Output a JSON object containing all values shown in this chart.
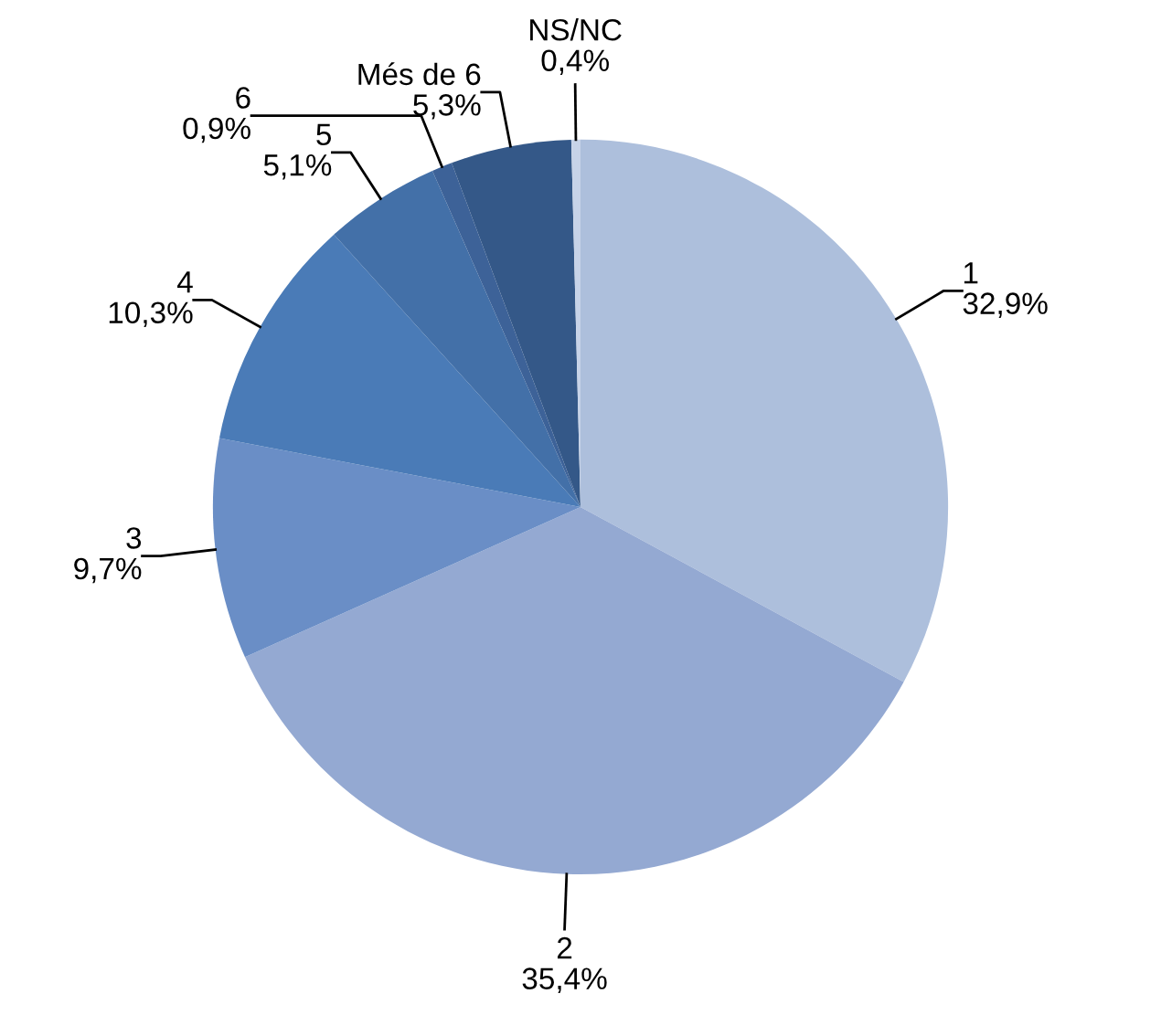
{
  "chart_data": {
    "type": "pie",
    "categories": [
      "1",
      "2",
      "3",
      "4",
      "5",
      "6",
      "Més de 6",
      "NS/NC"
    ],
    "values": [
      32.9,
      35.4,
      9.7,
      10.3,
      5.1,
      0.9,
      5.3,
      0.4
    ],
    "value_labels": [
      "32,9%",
      "35,4%",
      "9,7%",
      "10,3%",
      "5,1%",
      "0,9%",
      "5,3%",
      "0,4%"
    ],
    "colors": [
      "#adbfdc",
      "#94a9d2",
      "#6a8ec6",
      "#4a7bb7",
      "#4370a8",
      "#3d6298",
      "#345888",
      "#c7d3e8"
    ]
  }
}
